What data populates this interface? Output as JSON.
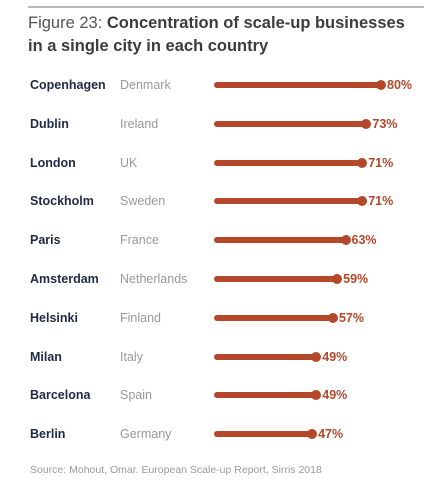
{
  "title_prefix": "Figure 23: ",
  "title_main": "Concentration of scale-up businesses in a single city in each country",
  "source": "Source: Mohout, Omar. European Scale-up Report, Sirris 2018",
  "accent_color": "#b5472a",
  "chart_data": {
    "type": "bar",
    "orientation": "horizontal",
    "title": "Concentration of scale-up businesses in a single city in each country",
    "unit": "%",
    "xlim": [
      0,
      80
    ],
    "rows": [
      {
        "city": "Copenhagen",
        "country": "Denmark",
        "value": 80,
        "label": "80%"
      },
      {
        "city": "Dublin",
        "country": "Ireland",
        "value": 73,
        "label": "73%"
      },
      {
        "city": "London",
        "country": "UK",
        "value": 71,
        "label": "71%"
      },
      {
        "city": "Stockholm",
        "country": "Sweden",
        "value": 71,
        "label": "71%"
      },
      {
        "city": "Paris",
        "country": "France",
        "value": 63,
        "label": "63%"
      },
      {
        "city": "Amsterdam",
        "country": "Netherlands",
        "value": 59,
        "label": "59%"
      },
      {
        "city": "Helsinki",
        "country": "Finland",
        "value": 57,
        "label": "57%"
      },
      {
        "city": "Milan",
        "country": "Italy",
        "value": 49,
        "label": "49%"
      },
      {
        "city": "Barcelona",
        "country": "Spain",
        "value": 49,
        "label": "49%"
      },
      {
        "city": "Berlin",
        "country": "Germany",
        "value": 47,
        "label": "47%"
      }
    ]
  }
}
